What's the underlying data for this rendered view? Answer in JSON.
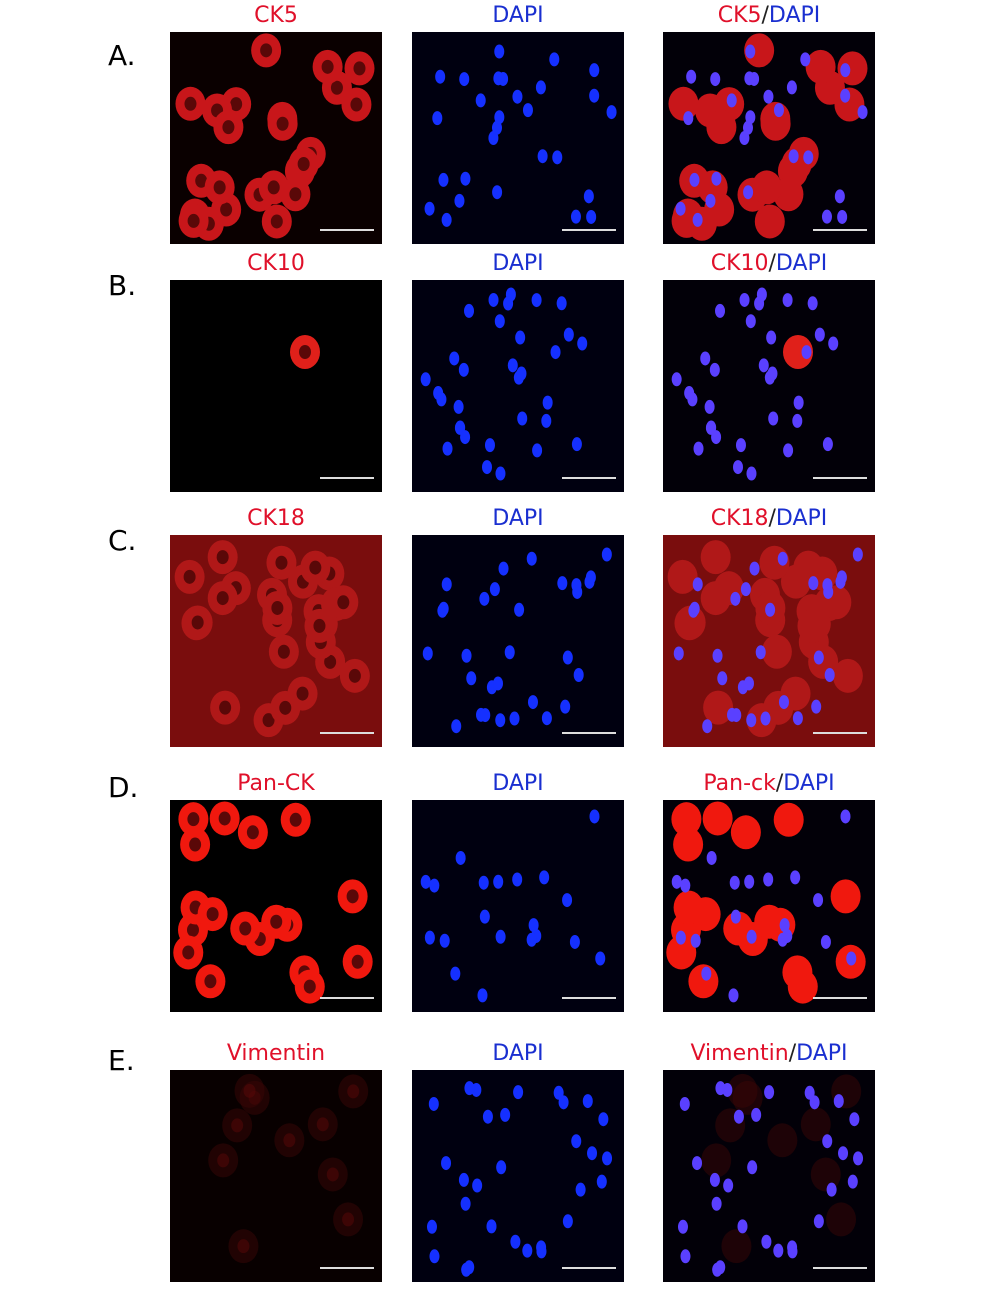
{
  "figure": {
    "rows": [
      {
        "label": "A.",
        "panels": [
          [
            "CK5"
          ],
          [
            "DAPI"
          ],
          [
            "CK5",
            "/",
            "DAPI"
          ]
        ]
      },
      {
        "label": "B.",
        "panels": [
          [
            "CK10"
          ],
          [
            "DAPI"
          ],
          [
            "CK10",
            "/",
            "DAPI"
          ]
        ]
      },
      {
        "label": "C.",
        "panels": [
          [
            "CK18"
          ],
          [
            "DAPI"
          ],
          [
            "CK18",
            "/",
            "DAPI"
          ]
        ]
      },
      {
        "label": "D.",
        "panels": [
          [
            "Pan-CK"
          ],
          [
            "DAPI"
          ],
          [
            "Pan-ck",
            "/",
            "DAPI"
          ]
        ]
      },
      {
        "label": "E.",
        "panels": [
          [
            "Vimentin"
          ],
          [
            "DAPI"
          ],
          [
            "Vimentin",
            "/",
            "DAPI"
          ]
        ]
      }
    ]
  }
}
